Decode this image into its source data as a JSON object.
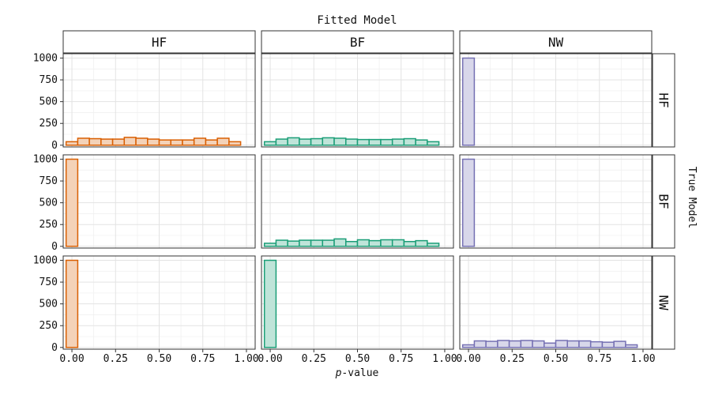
{
  "chart_data": {
    "type": "bar",
    "title": "Fitted Model",
    "row_title": "True Model",
    "xlabel_italic": "p",
    "xlabel_rest": "-value",
    "columns": [
      "HF",
      "BF",
      "NW"
    ],
    "rows": [
      "HF",
      "BF",
      "NW"
    ],
    "colors": {
      "HF": "#d95f02",
      "BF": "#1b9e77",
      "NW": "#7570b3"
    },
    "bin_width": 0.0667,
    "x_bins": [
      0.0,
      0.0667,
      0.1333,
      0.2,
      0.2667,
      0.3333,
      0.4,
      0.4667,
      0.5333,
      0.6,
      0.6667,
      0.7333,
      0.8,
      0.8667,
      0.9333,
      1.0
    ],
    "xlim": [
      -0.05,
      1.05
    ],
    "ylim": [
      -20,
      1050
    ],
    "x_ticks": [
      0.0,
      0.25,
      0.5,
      0.75,
      1.0
    ],
    "x_tick_labels": [
      "0.00",
      "0.25",
      "0.50",
      "0.75",
      "1.00"
    ],
    "y_ticks": [
      0,
      250,
      500,
      750,
      1000
    ],
    "y_tick_labels": [
      "0",
      "250",
      "500",
      "750",
      "1000"
    ],
    "grid": true,
    "panels": [
      {
        "row": "HF",
        "col": "HF",
        "values": [
          40,
          80,
          75,
          70,
          70,
          90,
          80,
          70,
          60,
          60,
          60,
          80,
          60,
          80,
          40,
          0
        ]
      },
      {
        "row": "HF",
        "col": "BF",
        "values": [
          40,
          70,
          85,
          70,
          75,
          85,
          80,
          70,
          65,
          65,
          65,
          70,
          75,
          60,
          40,
          0
        ]
      },
      {
        "row": "HF",
        "col": "NW",
        "values": [
          1000,
          0,
          0,
          0,
          0,
          0,
          0,
          0,
          0,
          0,
          0,
          0,
          0,
          0,
          0,
          0
        ]
      },
      {
        "row": "BF",
        "col": "HF",
        "values": [
          1000,
          0,
          0,
          0,
          0,
          0,
          0,
          0,
          0,
          0,
          0,
          0,
          0,
          0,
          0,
          0
        ]
      },
      {
        "row": "BF",
        "col": "BF",
        "values": [
          35,
          70,
          60,
          70,
          70,
          70,
          85,
          55,
          75,
          65,
          75,
          75,
          55,
          65,
          35,
          0
        ]
      },
      {
        "row": "BF",
        "col": "NW",
        "values": [
          1000,
          0,
          0,
          0,
          0,
          0,
          0,
          0,
          0,
          0,
          0,
          0,
          0,
          0,
          0,
          0
        ]
      },
      {
        "row": "NW",
        "col": "HF",
        "values": [
          1000,
          0,
          0,
          0,
          0,
          0,
          0,
          0,
          0,
          0,
          0,
          0,
          0,
          0,
          0,
          0
        ]
      },
      {
        "row": "NW",
        "col": "BF",
        "values": [
          1000,
          0,
          0,
          0,
          0,
          0,
          0,
          0,
          0,
          0,
          0,
          0,
          0,
          0,
          0,
          0
        ]
      },
      {
        "row": "NW",
        "col": "NW",
        "values": [
          30,
          75,
          70,
          80,
          75,
          80,
          75,
          50,
          80,
          75,
          75,
          65,
          60,
          70,
          30,
          0
        ]
      }
    ]
  }
}
